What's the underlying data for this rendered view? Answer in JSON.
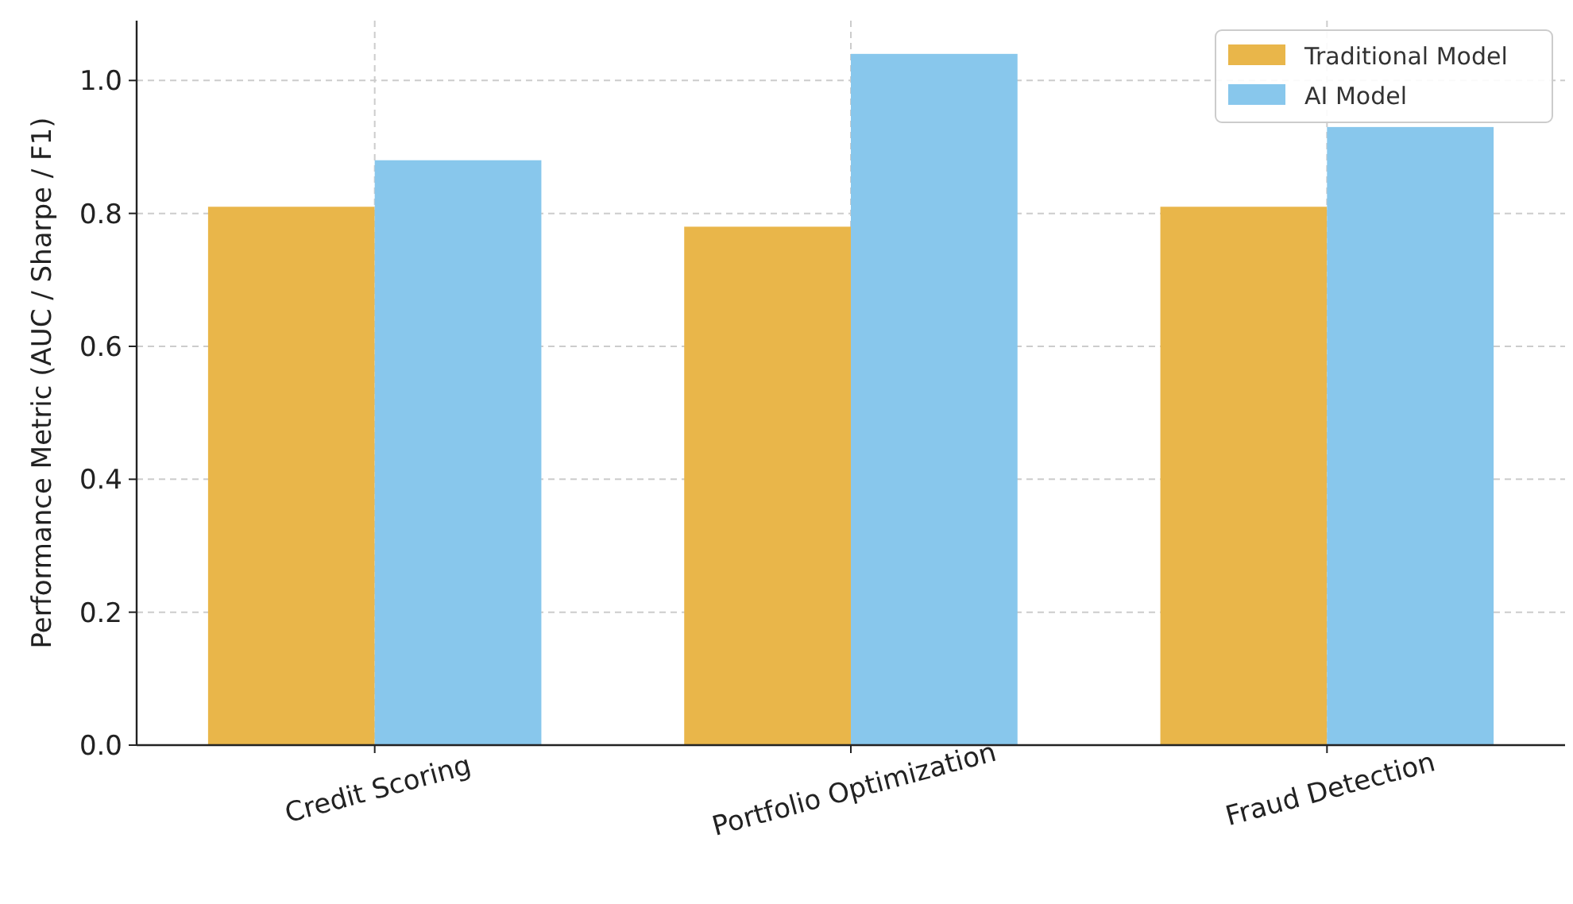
{
  "chart_data": {
    "type": "bar",
    "ylabel": "Performance Metric (AUC / Sharpe / F1)",
    "categories": [
      "Credit Scoring",
      "Portfolio Optimization",
      "Fraud Detection"
    ],
    "series": [
      {
        "name": "Traditional Model",
        "color": "#e9b64a",
        "values": [
          0.81,
          0.78,
          0.81
        ]
      },
      {
        "name": "AI Model",
        "color": "#88c7ec",
        "values": [
          0.88,
          1.04,
          0.93
        ]
      }
    ],
    "ylim": [
      0,
      1.09
    ],
    "yticks": [
      {
        "value": 0,
        "label": "0.0"
      },
      {
        "value": 0.2,
        "label": "0.2"
      },
      {
        "value": 0.4,
        "label": "0.4"
      },
      {
        "value": 0.6,
        "label": "0.6"
      },
      {
        "value": 0.8,
        "label": "0.8"
      },
      {
        "value": 1,
        "label": "1.0"
      }
    ],
    "grid": true,
    "legend": "top right"
  }
}
